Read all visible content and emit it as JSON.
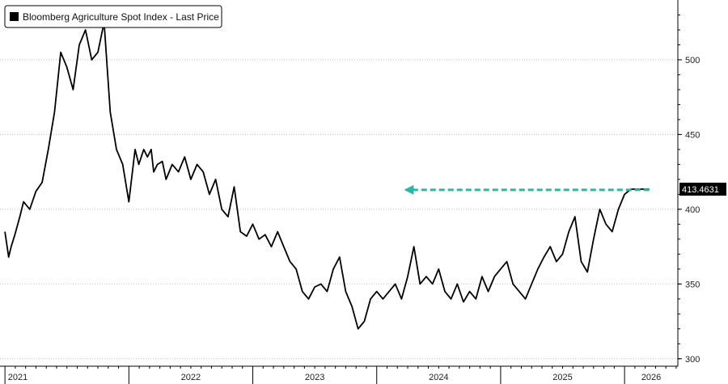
{
  "chart_data": {
    "type": "line",
    "legend": {
      "label": "Bloomberg Agriculture Spot Index - Last Price",
      "position": "top-left"
    },
    "last_price_label": "413.4631",
    "last_price": 413.4631,
    "series": [
      {
        "name": "Bloomberg Agriculture Spot Index - Last Price",
        "color": "#000000",
        "x": [
          2021.0,
          2021.03,
          2021.05,
          2021.08,
          2021.12,
          2021.15,
          2021.2,
          2021.25,
          2021.3,
          2021.35,
          2021.4,
          2021.45,
          2021.5,
          2021.55,
          2021.6,
          2021.65,
          2021.7,
          2021.75,
          2021.8,
          2021.85,
          2021.9,
          2021.95,
          2022.0,
          2022.05,
          2022.08,
          2022.12,
          2022.15,
          2022.18,
          2022.2,
          2022.23,
          2022.27,
          2022.3,
          2022.35,
          2022.4,
          2022.45,
          2022.5,
          2022.55,
          2022.6,
          2022.65,
          2022.7,
          2022.75,
          2022.8,
          2022.85,
          2022.9,
          2022.95,
          2023.0,
          2023.05,
          2023.1,
          2023.15,
          2023.2,
          2023.25,
          2023.3,
          2023.35,
          2023.4,
          2023.45,
          2023.5,
          2023.55,
          2023.6,
          2023.65,
          2023.7,
          2023.75,
          2023.8,
          2023.85,
          2023.9,
          2023.95,
          2024.0,
          2024.05,
          2024.1,
          2024.15,
          2024.2,
          2024.25,
          2024.3,
          2024.35,
          2024.4,
          2024.45,
          2024.5,
          2024.55,
          2024.6,
          2024.65,
          2024.7,
          2024.75,
          2024.8,
          2024.85,
          2024.9,
          2024.95,
          2025.0,
          2025.05,
          2025.1,
          2025.15,
          2025.2,
          2025.25,
          2025.3,
          2025.35,
          2025.4,
          2025.45,
          2025.5,
          2025.55,
          2025.6,
          2025.65,
          2025.7,
          2025.75,
          2025.8,
          2025.85,
          2025.9,
          2025.95,
          2026.0,
          2026.05,
          2026.08,
          2026.1,
          2026.12,
          2026.15,
          2026.17,
          2026.19,
          2026.2
        ],
        "values": [
          385,
          368,
          375,
          383,
          395,
          405,
          400,
          412,
          418,
          440,
          465,
          505,
          495,
          480,
          510,
          520,
          500,
          505,
          525,
          465,
          440,
          430,
          405,
          440,
          430,
          440,
          435,
          440,
          425,
          430,
          432,
          420,
          430,
          425,
          435,
          420,
          430,
          425,
          410,
          420,
          400,
          395,
          415,
          385,
          382,
          390,
          380,
          383,
          375,
          385,
          375,
          365,
          360,
          345,
          340,
          348,
          350,
          345,
          360,
          368,
          345,
          335,
          320,
          325,
          340,
          345,
          340,
          345,
          350,
          340,
          355,
          375,
          350,
          355,
          350,
          360,
          345,
          340,
          350,
          338,
          345,
          340,
          355,
          345,
          355,
          360,
          365,
          350,
          345,
          340,
          350,
          360,
          368,
          375,
          365,
          370,
          385,
          395,
          365,
          358,
          380,
          400,
          390,
          385,
          400,
          410,
          413.46,
          413.46,
          413.46,
          413.46,
          413.46,
          413.46,
          413.46,
          413.46
        ]
      }
    ],
    "x_ticks": [
      "2021",
      "2022",
      "2023",
      "2024",
      "2025",
      "2026"
    ],
    "y_ticks": [
      300,
      350,
      400,
      450,
      500
    ],
    "ylim": [
      295,
      540
    ],
    "xlim": [
      2020.96,
      2026.43
    ],
    "grid": "horizontal dotted",
    "annotation": {
      "type": "dashed arrow",
      "color": "#2bb7a8",
      "from_x": 2026.2,
      "to_x": 2024.22,
      "y": 413
    }
  }
}
